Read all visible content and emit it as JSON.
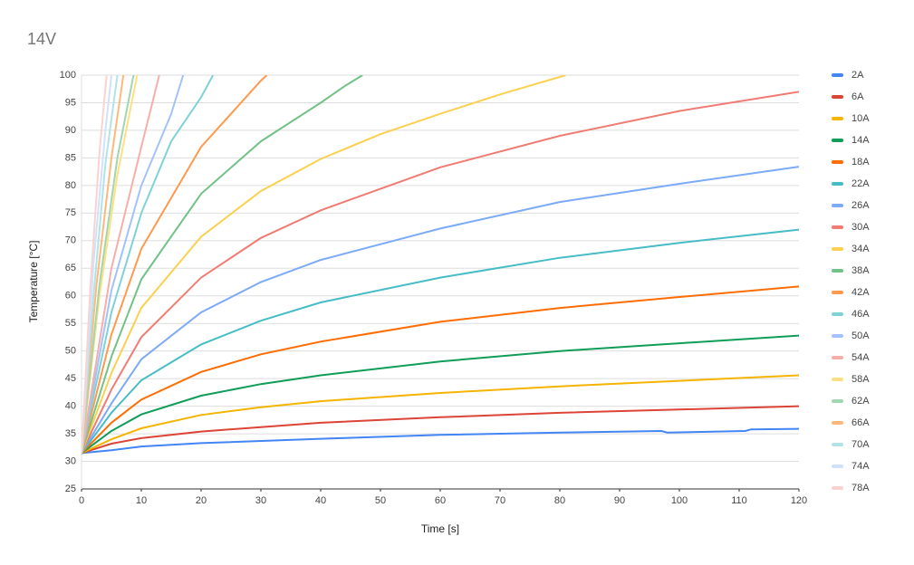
{
  "chart_data": {
    "type": "line",
    "title": "14V",
    "x_label": "Time [s]",
    "y_label": "Temperature [°C]",
    "xlim": [
      0,
      120
    ],
    "xticks": [
      0,
      10,
      20,
      30,
      40,
      50,
      60,
      70,
      80,
      90,
      100,
      110,
      120
    ],
    "ylim": [
      25,
      100
    ],
    "yticks": [
      25,
      30,
      35,
      40,
      45,
      50,
      55,
      60,
      65,
      70,
      75,
      80,
      85,
      90,
      95,
      100
    ],
    "grid": true,
    "legend": "right",
    "series": [
      {
        "name": "2A",
        "color": "#4285f4",
        "x": [
          0,
          5,
          10,
          20,
          40,
          60,
          80,
          97,
          98,
          111,
          112,
          120
        ],
        "values": [
          31.5,
          32,
          32.7,
          33.3,
          34.1,
          34.8,
          35.2,
          35.5,
          35.2,
          35.5,
          35.8,
          35.9
        ]
      },
      {
        "name": "6A",
        "color": "#db4437",
        "x": [
          0,
          5,
          10,
          20,
          40,
          60,
          80,
          100,
          120
        ],
        "values": [
          31.5,
          33.2,
          34.2,
          35.4,
          37,
          38,
          38.8,
          39.4,
          40
        ]
      },
      {
        "name": "10A",
        "color": "#f4b400",
        "x": [
          0,
          5,
          10,
          20,
          30,
          40,
          60,
          80,
          100,
          120
        ],
        "values": [
          31.5,
          34,
          36,
          38.4,
          39.8,
          40.9,
          42.4,
          43.6,
          44.6,
          45.6
        ]
      },
      {
        "name": "14A",
        "color": "#0f9d58",
        "x": [
          0,
          5,
          10,
          20,
          30,
          40,
          60,
          80,
          100,
          120
        ],
        "values": [
          31.5,
          35.5,
          38.5,
          41.9,
          44,
          45.6,
          48.1,
          50,
          51.4,
          52.8
        ]
      },
      {
        "name": "18A",
        "color": "#ff6d01",
        "x": [
          0,
          5,
          10,
          20,
          30,
          40,
          60,
          80,
          100,
          120
        ],
        "values": [
          31.5,
          37,
          41.2,
          46.2,
          49.4,
          51.7,
          55.3,
          57.8,
          59.8,
          61.7
        ]
      },
      {
        "name": "22A",
        "color": "#46bdc6",
        "x": [
          0,
          5,
          10,
          20,
          30,
          40,
          60,
          80,
          100,
          120
        ],
        "values": [
          31.5,
          38.8,
          44.7,
          51.2,
          55.5,
          58.8,
          63.3,
          66.9,
          69.6,
          72
        ]
      },
      {
        "name": "26A",
        "color": "#7baaf7",
        "x": [
          0,
          5,
          10,
          20,
          30,
          40,
          60,
          80,
          100,
          120
        ],
        "values": [
          31.5,
          40.5,
          48.5,
          57,
          62.5,
          66.5,
          72.2,
          77,
          80.3,
          83.4
        ]
      },
      {
        "name": "30A",
        "color": "#f07b72",
        "x": [
          0,
          5,
          10,
          20,
          30,
          40,
          60,
          80,
          100,
          120
        ],
        "values": [
          31.5,
          43,
          52.5,
          63.3,
          70.5,
          75.5,
          83.3,
          89,
          93.5,
          97
        ]
      },
      {
        "name": "34A",
        "color": "#fcd04f",
        "x": [
          0,
          5,
          10,
          20,
          30,
          40,
          50,
          60,
          70,
          81
        ],
        "values": [
          31.5,
          46,
          57.8,
          70.7,
          79,
          84.8,
          89.3,
          93,
          96.5,
          100
        ]
      },
      {
        "name": "38A",
        "color": "#71c287",
        "x": [
          0,
          5,
          10,
          20,
          30,
          40,
          44,
          47
        ],
        "values": [
          31.5,
          49,
          63,
          78.5,
          88,
          95,
          98,
          100
        ]
      },
      {
        "name": "42A",
        "color": "#ff994d",
        "x": [
          0,
          5,
          10,
          20,
          25,
          30,
          31
        ],
        "values": [
          31.5,
          53,
          68.5,
          87,
          93,
          99,
          100
        ]
      },
      {
        "name": "46A",
        "color": "#7ed1d7",
        "x": [
          0,
          5,
          10,
          15,
          20,
          22
        ],
        "values": [
          31.5,
          57,
          75,
          88,
          96,
          100
        ]
      },
      {
        "name": "50A",
        "color": "#a1c2fa",
        "x": [
          0,
          5,
          10,
          15,
          17
        ],
        "values": [
          31.5,
          61,
          80,
          93,
          100
        ]
      },
      {
        "name": "54A",
        "color": "#f6aea9",
        "x": [
          0,
          5,
          10,
          13
        ],
        "values": [
          31.5,
          65,
          87,
          100
        ]
      },
      {
        "name": "58A",
        "color": "#fde083",
        "x": [
          0,
          3,
          6,
          9.3
        ],
        "values": [
          31.5,
          60,
          82,
          100
        ]
      },
      {
        "name": "62A",
        "color": "#a0d6b0",
        "x": [
          0,
          3,
          6,
          8.7
        ],
        "values": [
          31.5,
          62,
          85,
          100
        ]
      },
      {
        "name": "66A",
        "color": "#ffb77a",
        "x": [
          0,
          2.5,
          5,
          7
        ],
        "values": [
          31.5,
          62,
          85,
          100
        ]
      },
      {
        "name": "70A",
        "color": "#b1e3e7",
        "x": [
          0,
          2,
          4,
          6
        ],
        "values": [
          31.5,
          60,
          84,
          100
        ]
      },
      {
        "name": "74A",
        "color": "#d0e1fc",
        "x": [
          0,
          2,
          4,
          5
        ],
        "values": [
          31.5,
          66,
          90,
          100
        ]
      },
      {
        "name": "78A",
        "color": "#fad3d0",
        "x": [
          0,
          1.5,
          3,
          4.2
        ],
        "values": [
          31.5,
          62,
          86,
          100
        ]
      }
    ]
  }
}
